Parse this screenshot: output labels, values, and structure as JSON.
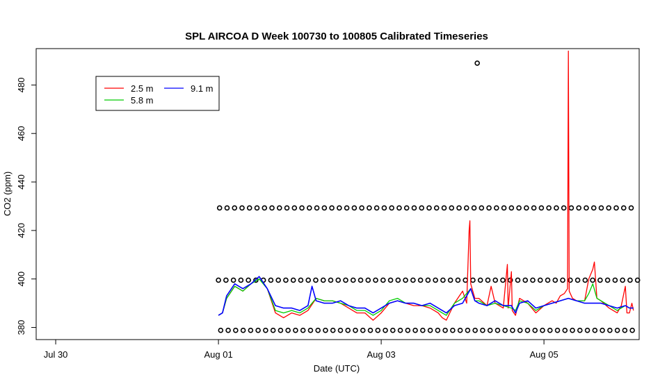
{
  "chart_data": {
    "type": "line",
    "title": "SPL AIRCOA D  Week 100730 to 100805  Calibrated Timeseries",
    "xlabel": "Date (UTC)",
    "ylabel": "CO2 (ppm)",
    "x_ticks": [
      "Jul 30",
      "Aug 01",
      "Aug 03",
      "Aug 05"
    ],
    "x_tick_days": [
      0,
      2,
      4,
      6
    ],
    "xlim_days": [
      -0.24,
      7.17
    ],
    "y_ticks": [
      380,
      400,
      420,
      440,
      460,
      480
    ],
    "ylim": [
      375,
      495
    ],
    "legend": {
      "placement": "top-left",
      "columns": 2
    },
    "series": [
      {
        "name": "2.5 m",
        "color": "#ff0000",
        "points": [
          [
            2.0,
            385
          ],
          [
            2.05,
            386
          ],
          [
            2.1,
            392
          ],
          [
            2.2,
            397
          ],
          [
            2.3,
            395
          ],
          [
            2.4,
            398
          ],
          [
            2.5,
            401
          ],
          [
            2.6,
            396
          ],
          [
            2.7,
            386
          ],
          [
            2.8,
            384
          ],
          [
            2.9,
            386
          ],
          [
            3.0,
            385
          ],
          [
            3.1,
            387
          ],
          [
            3.2,
            392
          ],
          [
            3.3,
            391
          ],
          [
            3.4,
            391
          ],
          [
            3.5,
            390
          ],
          [
            3.6,
            388
          ],
          [
            3.7,
            386
          ],
          [
            3.8,
            386
          ],
          [
            3.9,
            383
          ],
          [
            4.0,
            386
          ],
          [
            4.1,
            390
          ],
          [
            4.2,
            391
          ],
          [
            4.3,
            390
          ],
          [
            4.4,
            389
          ],
          [
            4.5,
            389
          ],
          [
            4.6,
            388
          ],
          [
            4.7,
            386
          ],
          [
            4.75,
            384
          ],
          [
            4.8,
            383
          ],
          [
            4.9,
            390
          ],
          [
            5.0,
            395
          ],
          [
            5.05,
            390
          ],
          [
            5.08,
            420
          ],
          [
            5.09,
            424
          ],
          [
            5.1,
            398
          ],
          [
            5.15,
            392
          ],
          [
            5.2,
            392
          ],
          [
            5.3,
            389
          ],
          [
            5.35,
            397
          ],
          [
            5.4,
            390
          ],
          [
            5.5,
            388
          ],
          [
            5.55,
            406
          ],
          [
            5.56,
            388
          ],
          [
            5.6,
            403
          ],
          [
            5.61,
            387
          ],
          [
            5.65,
            385
          ],
          [
            5.7,
            392
          ],
          [
            5.8,
            390
          ],
          [
            5.9,
            386
          ],
          [
            6.0,
            389
          ],
          [
            6.1,
            391
          ],
          [
            6.15,
            390
          ],
          [
            6.2,
            393
          ],
          [
            6.25,
            394
          ],
          [
            6.29,
            396
          ],
          [
            6.3,
            494
          ],
          [
            6.31,
            395
          ],
          [
            6.35,
            392
          ],
          [
            6.4,
            391
          ],
          [
            6.5,
            391
          ],
          [
            6.55,
            400
          ],
          [
            6.6,
            404
          ],
          [
            6.62,
            407
          ],
          [
            6.65,
            392
          ],
          [
            6.7,
            391
          ],
          [
            6.8,
            388
          ],
          [
            6.9,
            386
          ],
          [
            6.95,
            389
          ],
          [
            7.0,
            397
          ],
          [
            7.02,
            386
          ],
          [
            7.05,
            386
          ],
          [
            7.08,
            390
          ],
          [
            7.1,
            387
          ]
        ]
      },
      {
        "name": "5.8 m",
        "color": "#00cc00",
        "points": [
          [
            2.0,
            385
          ],
          [
            2.05,
            386
          ],
          [
            2.1,
            392
          ],
          [
            2.2,
            397
          ],
          [
            2.3,
            395
          ],
          [
            2.4,
            398
          ],
          [
            2.5,
            400
          ],
          [
            2.6,
            396
          ],
          [
            2.7,
            387
          ],
          [
            2.8,
            386
          ],
          [
            2.9,
            387
          ],
          [
            3.0,
            386
          ],
          [
            3.1,
            388
          ],
          [
            3.2,
            392
          ],
          [
            3.3,
            391
          ],
          [
            3.4,
            391
          ],
          [
            3.5,
            390
          ],
          [
            3.6,
            389
          ],
          [
            3.7,
            387
          ],
          [
            3.8,
            387
          ],
          [
            3.9,
            385
          ],
          [
            4.0,
            387
          ],
          [
            4.1,
            391
          ],
          [
            4.2,
            392
          ],
          [
            4.3,
            390
          ],
          [
            4.4,
            390
          ],
          [
            4.5,
            389
          ],
          [
            4.6,
            389
          ],
          [
            4.7,
            387
          ],
          [
            4.8,
            385
          ],
          [
            4.9,
            390
          ],
          [
            5.0,
            392
          ],
          [
            5.1,
            396
          ],
          [
            5.15,
            391
          ],
          [
            5.2,
            391
          ],
          [
            5.3,
            389
          ],
          [
            5.4,
            390
          ],
          [
            5.5,
            389
          ],
          [
            5.6,
            388
          ],
          [
            5.65,
            387
          ],
          [
            5.7,
            391
          ],
          [
            5.8,
            390
          ],
          [
            5.9,
            387
          ],
          [
            6.0,
            389
          ],
          [
            6.1,
            390
          ],
          [
            6.2,
            391
          ],
          [
            6.3,
            392
          ],
          [
            6.4,
            391
          ],
          [
            6.5,
            391
          ],
          [
            6.55,
            394
          ],
          [
            6.6,
            398
          ],
          [
            6.65,
            392
          ],
          [
            6.7,
            391
          ],
          [
            6.8,
            389
          ],
          [
            6.9,
            387
          ],
          [
            7.0,
            389
          ],
          [
            7.05,
            388
          ],
          [
            7.1,
            388
          ]
        ]
      },
      {
        "name": "9.1 m",
        "color": "#0000ff",
        "points": [
          [
            2.0,
            385
          ],
          [
            2.05,
            386
          ],
          [
            2.1,
            393
          ],
          [
            2.2,
            398
          ],
          [
            2.3,
            396
          ],
          [
            2.4,
            398
          ],
          [
            2.5,
            401
          ],
          [
            2.6,
            396
          ],
          [
            2.7,
            389
          ],
          [
            2.8,
            388
          ],
          [
            2.9,
            388
          ],
          [
            3.0,
            387
          ],
          [
            3.1,
            389
          ],
          [
            3.15,
            397
          ],
          [
            3.2,
            391
          ],
          [
            3.3,
            390
          ],
          [
            3.4,
            390
          ],
          [
            3.5,
            391
          ],
          [
            3.6,
            389
          ],
          [
            3.7,
            388
          ],
          [
            3.8,
            388
          ],
          [
            3.9,
            386
          ],
          [
            4.0,
            388
          ],
          [
            4.1,
            390
          ],
          [
            4.2,
            391
          ],
          [
            4.3,
            390
          ],
          [
            4.4,
            390
          ],
          [
            4.5,
            389
          ],
          [
            4.6,
            390
          ],
          [
            4.7,
            388
          ],
          [
            4.8,
            386
          ],
          [
            4.9,
            389
          ],
          [
            5.0,
            390
          ],
          [
            5.1,
            396
          ],
          [
            5.15,
            391
          ],
          [
            5.2,
            390
          ],
          [
            5.3,
            389
          ],
          [
            5.4,
            391
          ],
          [
            5.5,
            389
          ],
          [
            5.6,
            389
          ],
          [
            5.65,
            386
          ],
          [
            5.7,
            390
          ],
          [
            5.8,
            391
          ],
          [
            5.9,
            388
          ],
          [
            6.0,
            389
          ],
          [
            6.1,
            390
          ],
          [
            6.2,
            391
          ],
          [
            6.3,
            392
          ],
          [
            6.4,
            391
          ],
          [
            6.5,
            390
          ],
          [
            6.6,
            390
          ],
          [
            6.7,
            390
          ],
          [
            6.8,
            389
          ],
          [
            6.9,
            388
          ],
          [
            7.0,
            389
          ],
          [
            7.05,
            388
          ],
          [
            7.1,
            388
          ]
        ]
      }
    ],
    "markers": {
      "shape": "open-circle",
      "color": "#000000",
      "levels_ppm": [
        399.5,
        429.3,
        378.8
      ],
      "x_start_days": 2.0,
      "x_end_days": 7.15,
      "lone_point": [
        5.18,
        489
      ]
    }
  }
}
